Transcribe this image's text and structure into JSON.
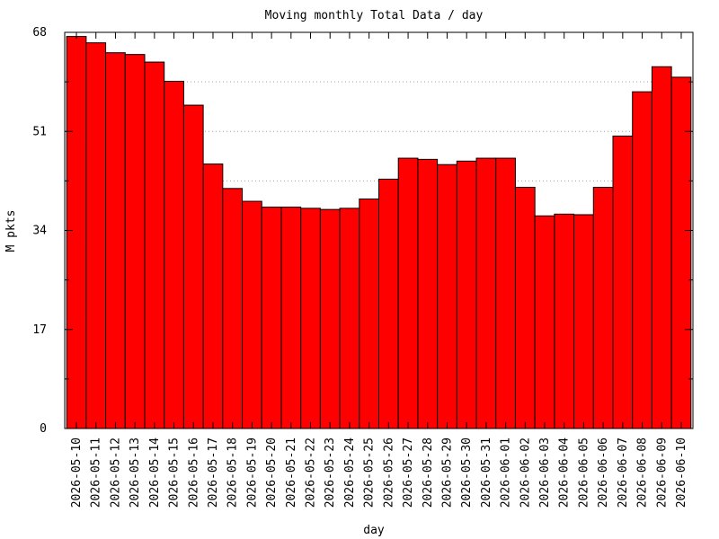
{
  "chart_data": {
    "type": "bar",
    "title": "Moving monthly Total Data / day",
    "xlabel": "day",
    "ylabel": "M pkts",
    "ylim": [
      0,
      68
    ],
    "yticks": [
      0,
      17,
      34,
      51,
      68
    ],
    "y_minor_ticks": [
      8.5,
      25.5,
      42.5,
      59.5
    ],
    "grid": "horizontal",
    "bar_color": "#ff0000",
    "categories": [
      "2026-05-10",
      "2026-05-11",
      "2026-05-12",
      "2026-05-13",
      "2026-05-14",
      "2026-05-15",
      "2026-05-16",
      "2026-05-17",
      "2026-05-18",
      "2026-05-19",
      "2026-05-20",
      "2026-05-21",
      "2026-05-22",
      "2026-05-23",
      "2026-05-24",
      "2026-05-25",
      "2026-05-26",
      "2026-05-27",
      "2026-05-28",
      "2026-05-29",
      "2026-05-30",
      "2026-05-31",
      "2026-06-01",
      "2026-06-02",
      "2026-06-03",
      "2026-06-04",
      "2026-06-05",
      "2026-06-06",
      "2026-06-07",
      "2026-06-08",
      "2026-06-09",
      "2026-06-10"
    ],
    "values": [
      67.3,
      66.2,
      64.5,
      64.2,
      62.9,
      59.6,
      55.5,
      45.4,
      41.2,
      39.0,
      38.0,
      38.0,
      37.8,
      37.6,
      37.8,
      39.4,
      42.8,
      46.4,
      46.2,
      45.3,
      45.9,
      46.4,
      46.4,
      41.4,
      36.5,
      36.8,
      36.7,
      41.4,
      50.2,
      57.8,
      62.1,
      60.3
    ]
  }
}
